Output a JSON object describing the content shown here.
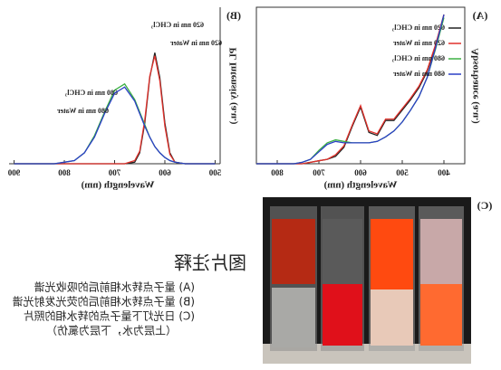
{
  "mirrored": true,
  "chart_data": [
    {
      "type": "line",
      "panel_label": "(A)",
      "x_label": "Wavelength (nm)",
      "y_label": "Absorbance (a.u.)",
      "x": [
        400,
        420,
        440,
        460,
        480,
        500,
        520,
        540,
        560,
        580,
        600,
        620,
        640,
        660,
        680,
        700,
        720,
        740,
        760,
        780,
        800,
        850
      ],
      "xlim": [
        850,
        350
      ],
      "xticks": [
        400,
        500,
        600,
        700,
        800
      ],
      "ylim": [
        0,
        1.05
      ],
      "legend": "upper right",
      "series": [
        {
          "name": "620 nm in CHCl₃",
          "color": "#222222",
          "values": [
            1.0,
            0.79,
            0.62,
            0.51,
            0.43,
            0.36,
            0.29,
            0.29,
            0.19,
            0.21,
            0.38,
            0.25,
            0.11,
            0.05,
            0.03,
            0.02,
            0.01,
            0,
            0,
            0,
            0,
            0
          ]
        },
        {
          "name": "620 nm in Water",
          "color": "#e0302a",
          "values": [
            1.0,
            0.8,
            0.63,
            0.52,
            0.44,
            0.37,
            0.3,
            0.3,
            0.2,
            0.22,
            0.39,
            0.26,
            0.12,
            0.06,
            0.03,
            0.02,
            0.01,
            0,
            0,
            0,
            0,
            0
          ]
        },
        {
          "name": "680 nm in CHCl₃",
          "color": "#3cb043",
          "values": [
            0.98,
            0.77,
            0.58,
            0.45,
            0.36,
            0.28,
            0.22,
            0.18,
            0.15,
            0.14,
            0.14,
            0.14,
            0.15,
            0.16,
            0.14,
            0.09,
            0.03,
            0.01,
            0,
            0,
            0,
            0
          ]
        },
        {
          "name": "680 nm in Water",
          "color": "#2b3fc6",
          "values": [
            1.0,
            0.78,
            0.58,
            0.45,
            0.36,
            0.28,
            0.22,
            0.18,
            0.15,
            0.14,
            0.14,
            0.14,
            0.14,
            0.15,
            0.13,
            0.08,
            0.03,
            0.01,
            0,
            0,
            0,
            0
          ]
        }
      ]
    },
    {
      "type": "line",
      "panel_label": "(B)",
      "x_label": "Wavelength (nm)",
      "y_label": "PL Intensity (a.u.)",
      "x": [
        500,
        520,
        540,
        560,
        580,
        590,
        600,
        610,
        620,
        630,
        640,
        650,
        660,
        680,
        700,
        720,
        740,
        760,
        780,
        800,
        820,
        840,
        860,
        880,
        900
      ],
      "xlim": [
        910,
        490
      ],
      "xticks": [
        500,
        600,
        700,
        800,
        900
      ],
      "ylim": [
        0,
        1.0
      ],
      "legend": "inline",
      "series": [
        {
          "name": "620 nm in CHCl₃",
          "color": "#222222",
          "values": [
            0,
            0,
            0,
            0,
            0.01,
            0.07,
            0.26,
            0.55,
            0.71,
            0.55,
            0.26,
            0.07,
            0.01,
            0,
            0,
            0,
            0,
            0,
            0,
            0,
            0,
            0,
            0,
            0,
            0
          ]
        },
        {
          "name": "620 nm in Water",
          "color": "#e0302a",
          "values": [
            0,
            0,
            0,
            0,
            0.01,
            0.06,
            0.24,
            0.53,
            0.69,
            0.56,
            0.28,
            0.08,
            0.02,
            0,
            0,
            0,
            0,
            0,
            0,
            0,
            0,
            0,
            0,
            0,
            0
          ]
        },
        {
          "name": "680 nm in CHCl₃",
          "color": "#3cb043",
          "values": [
            0,
            0,
            0,
            0,
            0.01,
            0.02,
            0.04,
            0.07,
            0.11,
            0.17,
            0.25,
            0.33,
            0.41,
            0.51,
            0.47,
            0.33,
            0.18,
            0.07,
            0.02,
            0.01,
            0,
            0,
            0,
            0,
            0
          ]
        },
        {
          "name": "680 nm in Water",
          "color": "#2b3fc6",
          "values": [
            0,
            0,
            0,
            0,
            0.01,
            0.02,
            0.04,
            0.07,
            0.11,
            0.17,
            0.24,
            0.32,
            0.4,
            0.49,
            0.45,
            0.32,
            0.17,
            0.07,
            0.02,
            0.01,
            0,
            0,
            0,
            0,
            0
          ]
        }
      ]
    }
  ],
  "photo": {
    "panel_label": "(C)"
  },
  "caption": {
    "title": "图片注释",
    "lines": [
      "(A) 量子点转水相前后的吸收光谱",
      "(B) 量子点转水相前后的荧光发射光谱",
      "(C) 日光灯下量子点的转水相的照片",
      "（上层为水，下层为氯仿）"
    ]
  }
}
